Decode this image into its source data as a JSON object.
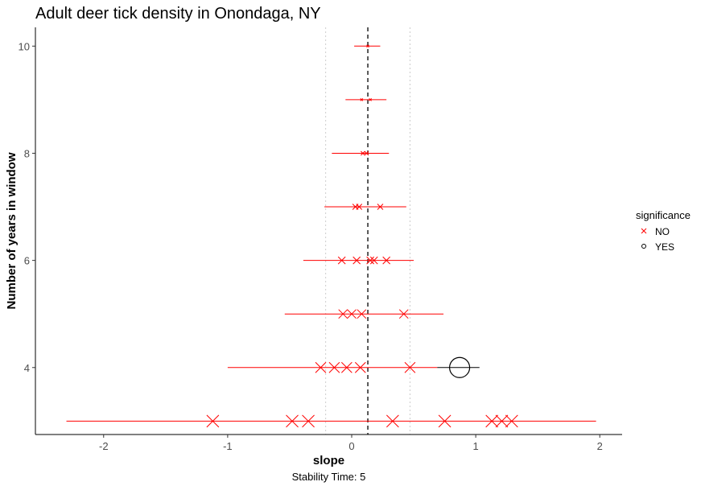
{
  "chart_data": {
    "type": "scatter",
    "title": "Adult deer tick density in Onondaga, NY",
    "xlabel": "slope",
    "ylabel": "Number of years in window",
    "caption": "Stability Time: 5",
    "xlim": [
      -2.55,
      2.18
    ],
    "ylim": [
      2.75,
      10.35
    ],
    "x_ticks": [
      -2,
      -1,
      0,
      1,
      2
    ],
    "y_ticks": [
      4,
      6,
      8,
      10
    ],
    "grid": false,
    "reference_lines": {
      "mean_slope": 0.13,
      "bounds": [
        -0.21,
        0.47
      ]
    },
    "legend": {
      "title": "significance",
      "placement": "right",
      "entries": [
        {
          "label": "NO",
          "shape": "x",
          "color": "#ff0000"
        },
        {
          "label": "YES",
          "shape": "circle",
          "color": "#000000"
        }
      ]
    },
    "ranges": [
      {
        "window": 10,
        "min": 0.02,
        "max": 0.23
      },
      {
        "window": 9,
        "min": -0.05,
        "max": 0.28
      },
      {
        "window": 8,
        "min": -0.16,
        "max": 0.3
      },
      {
        "window": 7,
        "min": -0.22,
        "max": 0.44
      },
      {
        "window": 6,
        "min": -0.39,
        "max": 0.5
      },
      {
        "window": 5,
        "min": -0.54,
        "max": 0.74
      },
      {
        "window": 4,
        "min": -1.0,
        "max": 1.03
      },
      {
        "window": 3,
        "min": -2.3,
        "max": 1.97
      }
    ],
    "points": [
      {
        "window": 10,
        "slope": 0.13,
        "significance": "NO"
      },
      {
        "window": 9,
        "slope": 0.08,
        "significance": "NO"
      },
      {
        "window": 9,
        "slope": 0.15,
        "significance": "NO"
      },
      {
        "window": 8,
        "slope": 0.09,
        "significance": "NO"
      },
      {
        "window": 8,
        "slope": 0.12,
        "significance": "NO"
      },
      {
        "window": 7,
        "slope": 0.03,
        "significance": "NO"
      },
      {
        "window": 7,
        "slope": 0.06,
        "significance": "NO"
      },
      {
        "window": 7,
        "slope": 0.23,
        "significance": "NO"
      },
      {
        "window": 6,
        "slope": -0.08,
        "significance": "NO"
      },
      {
        "window": 6,
        "slope": 0.04,
        "significance": "NO"
      },
      {
        "window": 6,
        "slope": 0.15,
        "significance": "NO"
      },
      {
        "window": 6,
        "slope": 0.18,
        "significance": "NO"
      },
      {
        "window": 6,
        "slope": 0.28,
        "significance": "NO"
      },
      {
        "window": 5,
        "slope": -0.07,
        "significance": "NO"
      },
      {
        "window": 5,
        "slope": 0.0,
        "significance": "NO"
      },
      {
        "window": 5,
        "slope": 0.08,
        "significance": "NO"
      },
      {
        "window": 5,
        "slope": 0.42,
        "significance": "NO"
      },
      {
        "window": 4,
        "slope": -0.25,
        "significance": "NO"
      },
      {
        "window": 4,
        "slope": -0.14,
        "significance": "NO"
      },
      {
        "window": 4,
        "slope": -0.04,
        "significance": "NO"
      },
      {
        "window": 4,
        "slope": 0.07,
        "significance": "NO"
      },
      {
        "window": 4,
        "slope": 0.47,
        "significance": "NO"
      },
      {
        "window": 4,
        "slope": 0.87,
        "significance": "YES"
      },
      {
        "window": 3,
        "slope": -1.12,
        "significance": "NO"
      },
      {
        "window": 3,
        "slope": -0.48,
        "significance": "NO"
      },
      {
        "window": 3,
        "slope": -0.35,
        "significance": "NO"
      },
      {
        "window": 3,
        "slope": 0.33,
        "significance": "NO"
      },
      {
        "window": 3,
        "slope": 0.75,
        "significance": "NO"
      },
      {
        "window": 3,
        "slope": 1.13,
        "significance": "NO"
      },
      {
        "window": 3,
        "slope": 1.21,
        "significance": "NO"
      },
      {
        "window": 3,
        "slope": 1.29,
        "significance": "NO"
      }
    ]
  }
}
